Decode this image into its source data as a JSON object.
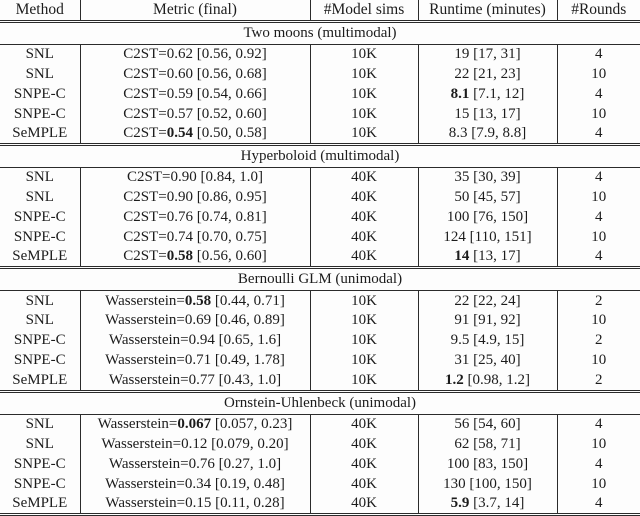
{
  "page": {
    "background": "#fdfdfd",
    "text_color": "#1c1c1c",
    "rule_color": "#2b2b2b"
  },
  "table": {
    "headers": [
      {
        "label": "Method"
      },
      {
        "label": "Metric (final)"
      },
      {
        "label": "#Model sims"
      },
      {
        "label": "Runtime (minutes)"
      },
      {
        "label": "#Rounds"
      }
    ],
    "sections": [
      {
        "title": "Two moons (multimodal)",
        "rows": [
          {
            "method": "SNL",
            "metric_prefix": "C2ST=",
            "metric_value": "0.62",
            "metric_bold": false,
            "metric_ci": "[0.56, 0.92]",
            "sims": "10K",
            "runtime_value": "19",
            "runtime_bold": false,
            "runtime_ci": "[17, 31]",
            "rounds": "4"
          },
          {
            "method": "SNL",
            "metric_prefix": "C2ST=",
            "metric_value": "0.60",
            "metric_bold": false,
            "metric_ci": "[0.56, 0.68]",
            "sims": "10K",
            "runtime_value": "22",
            "runtime_bold": false,
            "runtime_ci": "[21, 23]",
            "rounds": "10"
          },
          {
            "method": "SNPE-C",
            "metric_prefix": "C2ST=",
            "metric_value": "0.59",
            "metric_bold": false,
            "metric_ci": "[0.54, 0.66]",
            "sims": "10K",
            "runtime_value": "8.1",
            "runtime_bold": true,
            "runtime_ci": "[7.1, 12]",
            "rounds": "4"
          },
          {
            "method": "SNPE-C",
            "metric_prefix": "C2ST=",
            "metric_value": "0.57",
            "metric_bold": false,
            "metric_ci": "[0.52, 0.60]",
            "sims": "10K",
            "runtime_value": "15",
            "runtime_bold": false,
            "runtime_ci": "[13, 17]",
            "rounds": "10"
          },
          {
            "method": "SeMPLE",
            "metric_prefix": "C2ST=",
            "metric_value": "0.54",
            "metric_bold": true,
            "metric_ci": "[0.50, 0.58]",
            "sims": "10K",
            "runtime_value": "8.3",
            "runtime_bold": false,
            "runtime_ci": "[7.9, 8.8]",
            "rounds": "4"
          }
        ]
      },
      {
        "title": "Hyperboloid (multimodal)",
        "rows": [
          {
            "method": "SNL",
            "metric_prefix": "C2ST=",
            "metric_value": "0.90",
            "metric_bold": false,
            "metric_ci": "[0.84, 1.0]",
            "sims": "40K",
            "runtime_value": "35",
            "runtime_bold": false,
            "runtime_ci": "[30, 39]",
            "rounds": "4"
          },
          {
            "method": "SNL",
            "metric_prefix": "C2ST=",
            "metric_value": "0.90",
            "metric_bold": false,
            "metric_ci": "[0.86, 0.95]",
            "sims": "40K",
            "runtime_value": "50",
            "runtime_bold": false,
            "runtime_ci": "[45, 57]",
            "rounds": "10"
          },
          {
            "method": "SNPE-C",
            "metric_prefix": "C2ST=",
            "metric_value": "0.76",
            "metric_bold": false,
            "metric_ci": "[0.74, 0.81]",
            "sims": "40K",
            "runtime_value": "100",
            "runtime_bold": false,
            "runtime_ci": "[76, 150]",
            "rounds": "4"
          },
          {
            "method": "SNPE-C",
            "metric_prefix": "C2ST=",
            "metric_value": "0.74",
            "metric_bold": false,
            "metric_ci": "[0.70, 0.75]",
            "sims": "40K",
            "runtime_value": "124",
            "runtime_bold": false,
            "runtime_ci": "[110, 151]",
            "rounds": "10"
          },
          {
            "method": "SeMPLE",
            "metric_prefix": "C2ST=",
            "metric_value": "0.58",
            "metric_bold": true,
            "metric_ci": "[0.56, 0.60]",
            "sims": "40K",
            "runtime_value": "14",
            "runtime_bold": true,
            "runtime_ci": "[13, 17]",
            "rounds": "4"
          }
        ]
      },
      {
        "title": "Bernoulli GLM (unimodal)",
        "rows": [
          {
            "method": "SNL",
            "metric_prefix": "Wasserstein=",
            "metric_value": "0.58",
            "metric_bold": true,
            "metric_ci": "[0.44, 0.71]",
            "sims": "10K",
            "runtime_value": "22",
            "runtime_bold": false,
            "runtime_ci": "[22, 24]",
            "rounds": "2"
          },
          {
            "method": "SNL",
            "metric_prefix": "Wasserstein=",
            "metric_value": "0.69",
            "metric_bold": false,
            "metric_ci": "[0.46, 0.89]",
            "sims": "10K",
            "runtime_value": "91",
            "runtime_bold": false,
            "runtime_ci": "[91, 92]",
            "rounds": "10"
          },
          {
            "method": "SNPE-C",
            "metric_prefix": "Wasserstein=",
            "metric_value": "0.94",
            "metric_bold": false,
            "metric_ci": "[0.65, 1.6]",
            "sims": "10K",
            "runtime_value": "9.5",
            "runtime_bold": false,
            "runtime_ci": "[4.9, 15]",
            "rounds": "2"
          },
          {
            "method": "SNPE-C",
            "metric_prefix": "Wasserstein=",
            "metric_value": "0.71",
            "metric_bold": false,
            "metric_ci": "[0.49, 1.78]",
            "sims": "10K",
            "runtime_value": "31",
            "runtime_bold": false,
            "runtime_ci": "[25, 40]",
            "rounds": "10"
          },
          {
            "method": "SeMPLE",
            "metric_prefix": "Wasserstein=",
            "metric_value": "0.77",
            "metric_bold": false,
            "metric_ci": "[0.43, 1.0]",
            "sims": "10K",
            "runtime_value": "1.2",
            "runtime_bold": true,
            "runtime_ci": "[0.98, 1.2]",
            "rounds": "2"
          }
        ]
      },
      {
        "title": "Ornstein-Uhlenbeck (unimodal)",
        "rows": [
          {
            "method": "SNL",
            "metric_prefix": "Wasserstein=",
            "metric_value": "0.067",
            "metric_bold": true,
            "metric_ci": "[0.057, 0.23]",
            "sims": "40K",
            "runtime_value": "56",
            "runtime_bold": false,
            "runtime_ci": "[54, 60]",
            "rounds": "4"
          },
          {
            "method": "SNL",
            "metric_prefix": "Wasserstein=",
            "metric_value": "0.12",
            "metric_bold": false,
            "metric_ci": "[0.079, 0.20]",
            "sims": "40K",
            "runtime_value": "62",
            "runtime_bold": false,
            "runtime_ci": "[58, 71]",
            "rounds": "10"
          },
          {
            "method": "SNPE-C",
            "metric_prefix": "Wasserstein=",
            "metric_value": "0.76",
            "metric_bold": false,
            "metric_ci": "[0.27, 1.0]",
            "sims": "40K",
            "runtime_value": "100",
            "runtime_bold": false,
            "runtime_ci": "[83, 150]",
            "rounds": "4"
          },
          {
            "method": "SNPE-C",
            "metric_prefix": "Wasserstein=",
            "metric_value": "0.34",
            "metric_bold": false,
            "metric_ci": "[0.19, 0.48]",
            "sims": "40K",
            "runtime_value": "130",
            "runtime_bold": false,
            "runtime_ci": "[100, 150]",
            "rounds": "10"
          },
          {
            "method": "SeMPLE",
            "metric_prefix": "Wasserstein=",
            "metric_value": "0.15",
            "metric_bold": false,
            "metric_ci": "[0.11, 0.28]",
            "sims": "40K",
            "runtime_value": "5.9",
            "runtime_bold": true,
            "runtime_ci": "[3.7, 14]",
            "rounds": "4"
          }
        ]
      }
    ]
  }
}
